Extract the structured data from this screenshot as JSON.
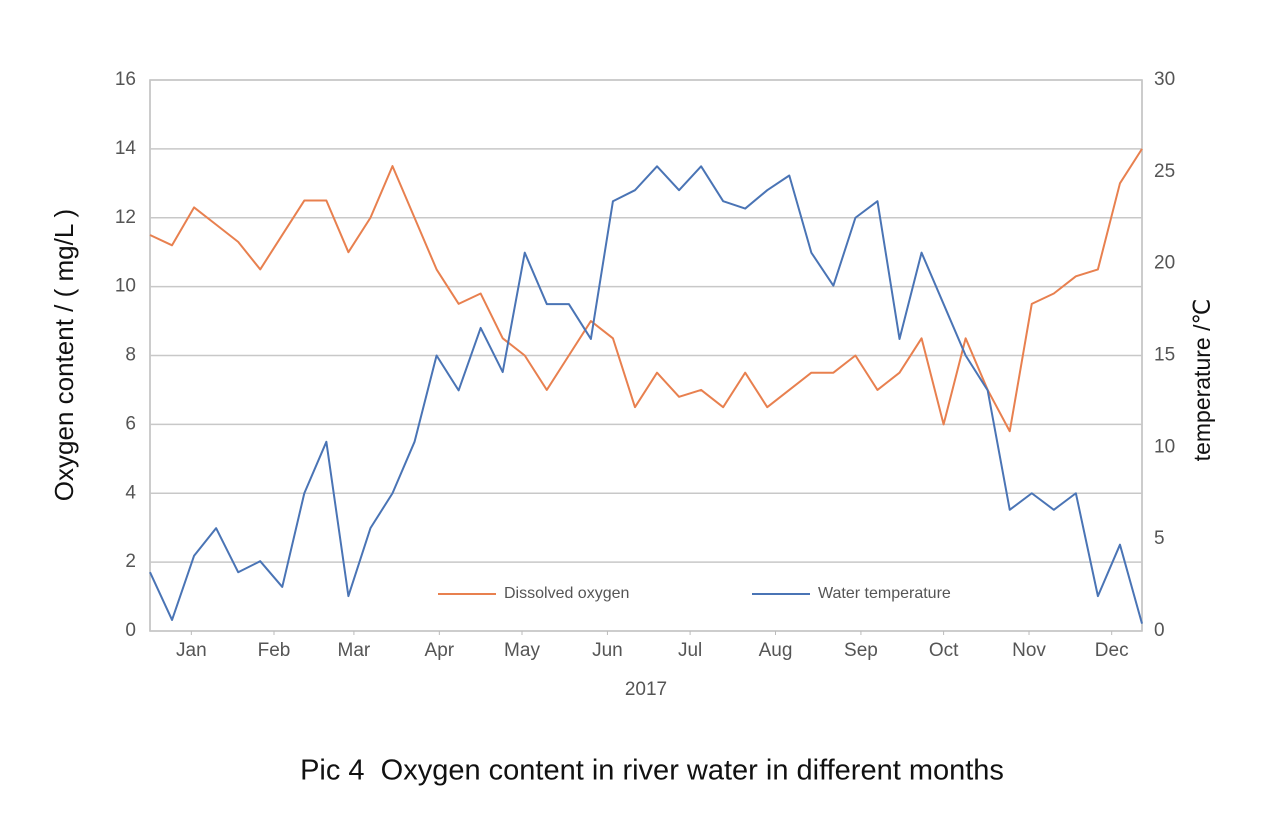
{
  "chart_data": {
    "type": "line",
    "caption": "Pic 4  Oxygen content in river water in different months",
    "xlabel": "2017",
    "ylabel": "Oxygen content / ( mg/L )",
    "y2label": "temperature /℃",
    "xlim": [
      0,
      360
    ],
    "xticks": [
      {
        "value": 15,
        "label": "Jan"
      },
      {
        "value": 45,
        "label": "Feb"
      },
      {
        "value": 74,
        "label": "Mar"
      },
      {
        "value": 105,
        "label": "Apr"
      },
      {
        "value": 135,
        "label": "May"
      },
      {
        "value": 166,
        "label": "Jun"
      },
      {
        "value": 196,
        "label": "Jul"
      },
      {
        "value": 227,
        "label": "Aug"
      },
      {
        "value": 258,
        "label": "Sep"
      },
      {
        "value": 288,
        "label": "Oct"
      },
      {
        "value": 319,
        "label": "Nov"
      },
      {
        "value": 349,
        "label": "Dec"
      }
    ],
    "ylim": [
      0,
      16
    ],
    "yticks": [
      0,
      2,
      4,
      6,
      8,
      10,
      12,
      14,
      16
    ],
    "y2lim": [
      0,
      30
    ],
    "y2ticks": [
      0,
      5,
      10,
      15,
      20,
      25,
      30
    ],
    "grid": true,
    "legend": "bottom",
    "x": [
      0,
      8,
      16,
      24,
      32,
      40,
      48,
      56,
      64,
      72,
      80,
      88,
      96,
      104,
      112,
      120,
      128,
      136,
      144,
      152,
      160,
      168,
      176,
      184,
      192,
      200,
      208,
      216,
      224,
      232,
      240,
      248,
      256,
      264,
      272,
      280,
      288,
      296,
      304,
      312,
      320,
      328,
      336,
      344,
      352,
      360
    ],
    "series": [
      {
        "name": "Dissolved oxygen",
        "color": "#e8804f",
        "axis": "y",
        "values": [
          11.5,
          11.2,
          12.3,
          11.8,
          11.3,
          10.5,
          11.5,
          12.5,
          12.5,
          11.0,
          12.0,
          13.5,
          12.0,
          10.5,
          9.5,
          9.8,
          8.5,
          8.0,
          7.0,
          8.0,
          9.0,
          8.5,
          6.5,
          7.5,
          6.8,
          7.0,
          6.5,
          7.5,
          6.5,
          7.0,
          7.5,
          7.5,
          8.0,
          7.0,
          7.5,
          8.5,
          6.0,
          8.5,
          7.0,
          5.8,
          9.5,
          9.8,
          10.3,
          10.5,
          13.0,
          14.0
        ]
      },
      {
        "name": "Water temperature",
        "color": "#4a74b5",
        "axis": "y2",
        "values": [
          3.2,
          0.6,
          4.1,
          5.6,
          3.2,
          3.8,
          2.4,
          7.5,
          10.3,
          1.9,
          5.6,
          7.5,
          10.3,
          15,
          13.1,
          16.5,
          14.1,
          20.6,
          17.8,
          17.8,
          15.9,
          23.4,
          24,
          25.3,
          24,
          25.3,
          23.4,
          23,
          24,
          24.8,
          20.6,
          18.8,
          22.5,
          23.4,
          15.9,
          20.6,
          17.8,
          15,
          13.1,
          6.6,
          7.5,
          6.6,
          7.5,
          1.9,
          4.7,
          0.4
        ]
      }
    ]
  }
}
